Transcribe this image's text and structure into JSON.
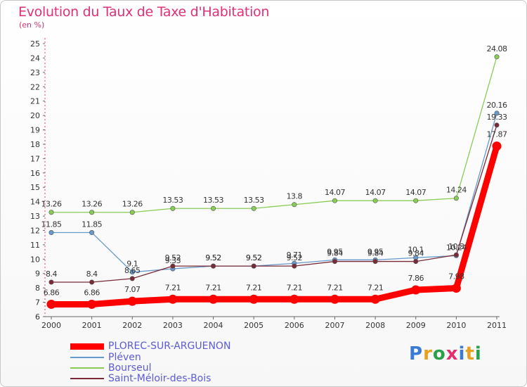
{
  "header": {
    "title": "Evolution du Taux de Taxe d'Habitation",
    "unit": "(en %)"
  },
  "logo": {
    "text": "Proxiti",
    "colors": [
      "#3a7bd5",
      "#e8a020",
      "#2aa04a",
      "#e03070",
      "#3a7bd5",
      "#e8a020",
      "#2aa04a"
    ]
  },
  "chart_data": {
    "type": "line",
    "x": [
      "2000",
      "2001",
      "2002",
      "2003",
      "2004",
      "2005",
      "2006",
      "2007",
      "2008",
      "2009",
      "2010",
      "2011"
    ],
    "ylim": [
      6,
      25
    ],
    "yticks": [
      6,
      7,
      8,
      9,
      10,
      11,
      12,
      13,
      14,
      15,
      16,
      17,
      18,
      19,
      20,
      21,
      22,
      23,
      24,
      25
    ],
    "grid": false,
    "legend_position": "bottom-left",
    "series": [
      {
        "name": "PLOREC-SUR-ARGUENON",
        "color": "#ff0000",
        "values": [
          6.86,
          6.86,
          7.07,
          7.21,
          7.21,
          7.21,
          7.21,
          7.21,
          7.21,
          7.86,
          7.98,
          17.87
        ],
        "labels": [
          "6.86",
          "6.86",
          "7.07",
          "7.21",
          "7.21",
          "7.21",
          "7.21",
          "7.21",
          "7.21",
          "7.86",
          "7.98",
          "17.87"
        ]
      },
      {
        "name": "Pléven",
        "color": "#6699cc",
        "values": [
          11.85,
          11.85,
          9.1,
          9.33,
          9.52,
          9.52,
          9.71,
          9.95,
          9.95,
          10.1,
          10.24,
          20.16
        ],
        "labels": [
          "11.85",
          "11.85",
          "9.1",
          "9.33",
          "9.52",
          "9.52",
          "9.71",
          "9.95",
          "9.95",
          "10.1",
          "10.24",
          "20.16"
        ]
      },
      {
        "name": "Bourseul",
        "color": "#88cc55",
        "values": [
          13.26,
          13.26,
          13.26,
          13.53,
          13.53,
          13.53,
          13.8,
          14.07,
          14.07,
          14.07,
          14.24,
          24.08
        ],
        "labels": [
          "13.26",
          "13.26",
          "13.26",
          "13.53",
          "13.53",
          "13.53",
          "13.8",
          "14.07",
          "14.07",
          "14.07",
          "14.24",
          "24.08"
        ]
      },
      {
        "name": "Saint-Méloir-des-Bois",
        "color": "#7a2a36",
        "values": [
          8.4,
          8.4,
          8.65,
          9.52,
          9.52,
          9.52,
          9.52,
          9.84,
          9.84,
          9.84,
          10.3,
          19.33
        ],
        "labels": [
          "8.4",
          "8.4",
          "8.65",
          "9.52",
          "9.52",
          "9.52",
          "9.52",
          "9.84",
          "9.84",
          "9.84",
          "10.3",
          "19.33"
        ]
      }
    ]
  }
}
